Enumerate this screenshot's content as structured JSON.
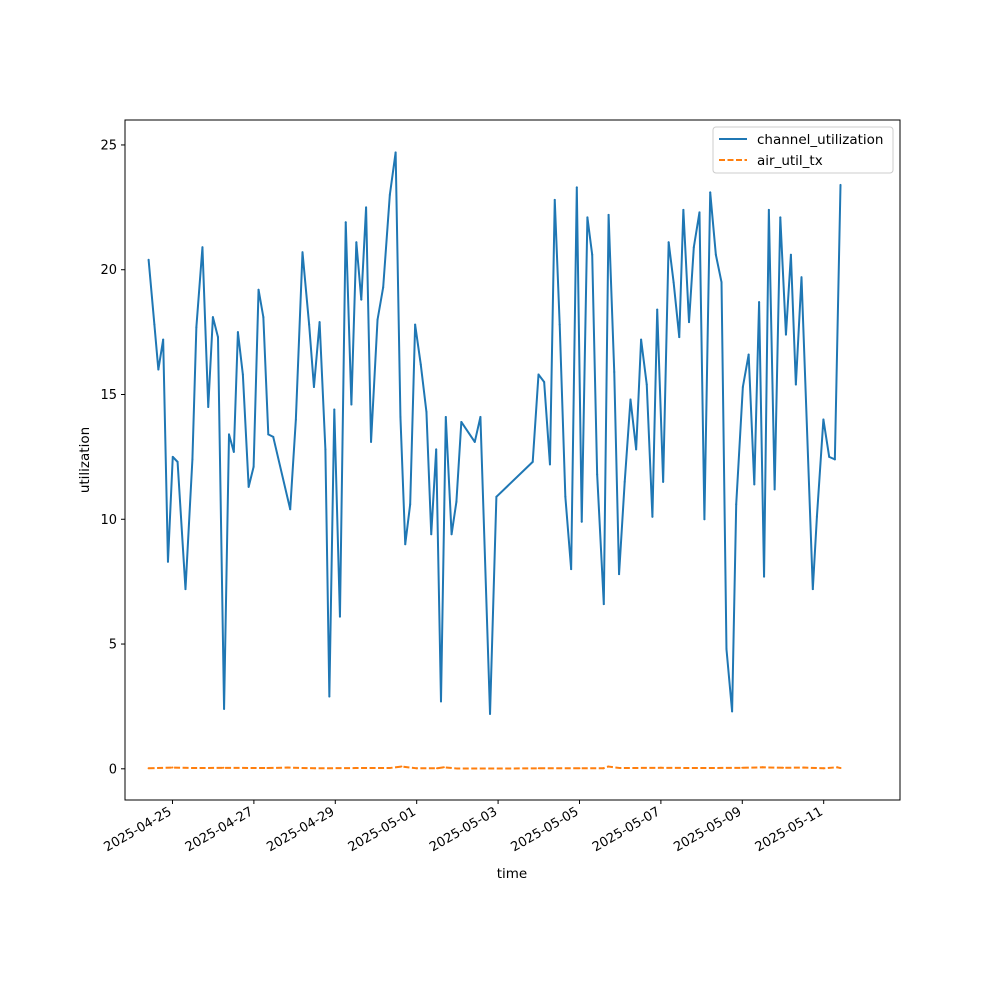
{
  "chart_data": {
    "type": "line",
    "title": "",
    "xlabel": "time",
    "ylabel": "utilization",
    "xlim": [
      "2025-04-23T20:00",
      "2025-05-12T21:00"
    ],
    "ylim": [
      -1.25,
      26.0
    ],
    "y_ticks": [
      0,
      5,
      10,
      15,
      20,
      25
    ],
    "x_ticks": [
      "2025-04-25",
      "2025-04-27",
      "2025-04-29",
      "2025-05-01",
      "2025-05-03",
      "2025-05-05",
      "2025-05-07",
      "2025-05-09",
      "2025-05-11"
    ],
    "grid": false,
    "legend_position": "top-right",
    "series": [
      {
        "name": "channel_utilization",
        "color": "#1f77b4",
        "style": "solid",
        "points": [
          [
            "2025-04-24T09:55",
            20.4
          ],
          [
            "2025-04-24T13:20",
            17.8
          ],
          [
            "2025-04-24T15:40",
            16.0
          ],
          [
            "2025-04-24T18:30",
            17.2
          ],
          [
            "2025-04-24T21:20",
            8.3
          ],
          [
            "2025-04-25T00:10",
            12.5
          ],
          [
            "2025-04-25T03:00",
            12.3
          ],
          [
            "2025-04-25T07:40",
            7.2
          ],
          [
            "2025-04-25T11:45",
            12.4
          ],
          [
            "2025-04-25T14:05",
            17.7
          ],
          [
            "2025-04-25T17:40",
            20.9
          ],
          [
            "2025-04-25T21:05",
            14.5
          ],
          [
            "2025-04-25T23:50",
            18.1
          ],
          [
            "2025-04-26T02:50",
            17.3
          ],
          [
            "2025-04-26T06:25",
            2.4
          ],
          [
            "2025-04-26T09:20",
            13.4
          ],
          [
            "2025-04-26T12:10",
            12.7
          ],
          [
            "2025-04-26T14:35",
            17.5
          ],
          [
            "2025-04-26T17:30",
            15.8
          ],
          [
            "2025-04-26T20:55",
            11.3
          ],
          [
            "2025-04-26T23:50",
            12.1
          ],
          [
            "2025-04-27T02:45",
            19.2
          ],
          [
            "2025-04-27T05:35",
            18.1
          ],
          [
            "2025-04-27T08:30",
            13.4
          ],
          [
            "2025-04-27T11:25",
            13.3
          ],
          [
            "2025-04-27T21:25",
            10.4
          ],
          [
            "2025-04-28T00:45",
            14.0
          ],
          [
            "2025-04-28T04:40",
            20.7
          ],
          [
            "2025-04-28T08:35",
            17.8
          ],
          [
            "2025-04-28T11:25",
            15.3
          ],
          [
            "2025-04-28T14:45",
            17.9
          ],
          [
            "2025-04-28T18:10",
            12.8
          ],
          [
            "2025-04-28T20:30",
            2.9
          ],
          [
            "2025-04-28T23:25",
            14.4
          ],
          [
            "2025-04-29T02:45",
            6.1
          ],
          [
            "2025-04-29T06:10",
            21.9
          ],
          [
            "2025-04-29T09:30",
            14.6
          ],
          [
            "2025-04-29T12:25",
            21.1
          ],
          [
            "2025-04-29T15:20",
            18.8
          ],
          [
            "2025-04-29T18:10",
            22.5
          ],
          [
            "2025-04-29T21:05",
            13.1
          ],
          [
            "2025-04-30T00:55",
            18.0
          ],
          [
            "2025-04-30T04:15",
            19.3
          ],
          [
            "2025-04-30T08:10",
            23.0
          ],
          [
            "2025-04-30T11:35",
            24.7
          ],
          [
            "2025-04-30T14:25",
            14.1
          ],
          [
            "2025-04-30T17:15",
            9.0
          ],
          [
            "2025-04-30T20:10",
            10.6
          ],
          [
            "2025-04-30T23:05",
            17.8
          ],
          [
            "2025-05-01T02:25",
            16.2
          ],
          [
            "2025-05-01T05:45",
            14.3
          ],
          [
            "2025-05-01T08:35",
            9.4
          ],
          [
            "2025-05-01T11:30",
            12.8
          ],
          [
            "2025-05-01T14:20",
            2.7
          ],
          [
            "2025-05-01T17:10",
            14.1
          ],
          [
            "2025-05-01T20:35",
            9.4
          ],
          [
            "2025-05-01T23:25",
            10.7
          ],
          [
            "2025-05-02T02:20",
            13.9
          ],
          [
            "2025-05-02T10:15",
            13.1
          ],
          [
            "2025-05-02T13:35",
            14.1
          ],
          [
            "2025-05-02T19:15",
            2.2
          ],
          [
            "2025-05-02T23:00",
            10.9
          ],
          [
            "2025-05-03T20:25",
            12.3
          ],
          [
            "2025-05-03T23:50",
            15.8
          ],
          [
            "2025-05-04T03:10",
            15.5
          ],
          [
            "2025-05-04T06:35",
            12.2
          ],
          [
            "2025-05-04T09:25",
            22.8
          ],
          [
            "2025-05-04T12:20",
            17.8
          ],
          [
            "2025-05-04T15:40",
            10.9
          ],
          [
            "2025-05-04T19:05",
            8.0
          ],
          [
            "2025-05-04T22:25",
            23.3
          ],
          [
            "2025-05-05T01:20",
            9.9
          ],
          [
            "2025-05-05T04:40",
            22.1
          ],
          [
            "2025-05-05T07:30",
            20.6
          ],
          [
            "2025-05-05T10:25",
            11.8
          ],
          [
            "2025-05-05T14:20",
            6.6
          ],
          [
            "2025-05-05T17:10",
            22.2
          ],
          [
            "2025-05-05T20:30",
            15.9
          ],
          [
            "2025-05-05T23:20",
            7.8
          ],
          [
            "2025-05-06T02:40",
            11.5
          ],
          [
            "2025-05-06T06:05",
            14.8
          ],
          [
            "2025-05-06T09:25",
            12.8
          ],
          [
            "2025-05-06T12:20",
            17.2
          ],
          [
            "2025-05-06T15:40",
            15.4
          ],
          [
            "2025-05-06T19:00",
            10.1
          ],
          [
            "2025-05-06T21:50",
            18.4
          ],
          [
            "2025-05-07T01:20",
            11.5
          ],
          [
            "2025-05-07T04:35",
            21.1
          ],
          [
            "2025-05-07T07:30",
            19.5
          ],
          [
            "2025-05-07T10:50",
            17.3
          ],
          [
            "2025-05-07T13:15",
            22.4
          ],
          [
            "2025-05-07T16:35",
            17.9
          ],
          [
            "2025-05-07T19:25",
            20.9
          ],
          [
            "2025-05-07T22:45",
            22.3
          ],
          [
            "2025-05-08T01:40",
            10.0
          ],
          [
            "2025-05-08T05:05",
            23.1
          ],
          [
            "2025-05-08T08:25",
            20.6
          ],
          [
            "2025-05-08T11:45",
            19.5
          ],
          [
            "2025-05-08T14:40",
            4.8
          ],
          [
            "2025-05-08T18:00",
            2.3
          ],
          [
            "2025-05-08T20:25",
            10.6
          ],
          [
            "2025-05-09T00:20",
            15.3
          ],
          [
            "2025-05-09T03:45",
            16.6
          ],
          [
            "2025-05-09T07:05",
            11.4
          ],
          [
            "2025-05-09T09:55",
            18.7
          ],
          [
            "2025-05-09T12:50",
            7.7
          ],
          [
            "2025-05-09T15:40",
            22.4
          ],
          [
            "2025-05-09T19:05",
            11.2
          ],
          [
            "2025-05-09T22:25",
            22.1
          ],
          [
            "2025-05-10T01:45",
            17.4
          ],
          [
            "2025-05-10T04:40",
            20.6
          ],
          [
            "2025-05-10T07:35",
            15.4
          ],
          [
            "2025-05-10T10:55",
            19.7
          ],
          [
            "2025-05-10T17:35",
            7.2
          ],
          [
            "2025-05-10T20:00",
            10.1
          ],
          [
            "2025-05-10T23:50",
            14.0
          ],
          [
            "2025-05-11T03:15",
            12.5
          ],
          [
            "2025-05-11T06:35",
            12.4
          ],
          [
            "2025-05-11T09:55",
            23.4
          ]
        ]
      },
      {
        "name": "air_util_tx",
        "color": "#ff7f0e",
        "style": "dashed",
        "points": [
          [
            "2025-04-24T09:55",
            0.02
          ],
          [
            "2025-04-25T00:00",
            0.05
          ],
          [
            "2025-04-25T14:00",
            0.03
          ],
          [
            "2025-04-26T06:00",
            0.04
          ],
          [
            "2025-04-27T08:00",
            0.03
          ],
          [
            "2025-04-27T20:00",
            0.05
          ],
          [
            "2025-04-28T12:00",
            0.02
          ],
          [
            "2025-04-29T12:00",
            0.03
          ],
          [
            "2025-04-30T08:00",
            0.03
          ],
          [
            "2025-04-30T15:00",
            0.09
          ],
          [
            "2025-05-01T00:00",
            0.02
          ],
          [
            "2025-05-01T12:00",
            0.02
          ],
          [
            "2025-05-01T16:00",
            0.06
          ],
          [
            "2025-05-02T00:00",
            0.01
          ],
          [
            "2025-05-03T00:00",
            0.01
          ],
          [
            "2025-05-04T00:00",
            0.02
          ],
          [
            "2025-05-05T00:00",
            0.02
          ],
          [
            "2025-05-05T14:00",
            0.02
          ],
          [
            "2025-05-05T17:00",
            0.09
          ],
          [
            "2025-05-06T00:00",
            0.03
          ],
          [
            "2025-05-07T00:00",
            0.04
          ],
          [
            "2025-05-08T00:00",
            0.03
          ],
          [
            "2025-05-09T00:00",
            0.04
          ],
          [
            "2025-05-09T12:00",
            0.06
          ],
          [
            "2025-05-10T00:00",
            0.04
          ],
          [
            "2025-05-10T12:00",
            0.05
          ],
          [
            "2025-05-11T00:00",
            0.02
          ],
          [
            "2025-05-11T08:00",
            0.06
          ],
          [
            "2025-05-11T09:55",
            0.03
          ]
        ]
      }
    ]
  }
}
